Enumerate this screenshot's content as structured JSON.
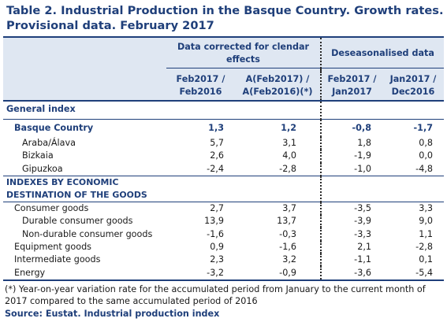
{
  "title": "Table 2. Industrial Production in the Basque Country. Growth rates. Provisional data. February 2017",
  "header": {
    "group1": "Data corrected for clendar effects",
    "group2": "Deseasonalised data",
    "col1": "Feb2017 / Feb2016",
    "col2": "A(Feb2017) / A(Feb2016)(*)",
    "col3": "Feb2017 / Jan2017",
    "col4": "Jan2017 / Dec2016"
  },
  "sections": {
    "general": "General index",
    "destination": "INDEXES BY ECONOMIC DESTINATION OF THE GOODS"
  },
  "rows": {
    "basque": {
      "label": "Basque Country",
      "v1": "1,3",
      "v2": "1,2",
      "v3": "-0,8",
      "v4": "-1,7"
    },
    "araba": {
      "label": "Araba/Álava",
      "v1": "5,7",
      "v2": "3,1",
      "v3": "1,8",
      "v4": "0,8"
    },
    "bizkaia": {
      "label": "Bizkaia",
      "v1": "2,6",
      "v2": "4,0",
      "v3": "-1,9",
      "v4": "0,0"
    },
    "gipuzkoa": {
      "label": "Gipuzkoa",
      "v1": "-2,4",
      "v2": "-2,8",
      "v3": "-1,0",
      "v4": "-4,8"
    },
    "consumer": {
      "label": "Consumer goods",
      "v1": "2,7",
      "v2": "3,7",
      "v3": "-3,5",
      "v4": "3,3"
    },
    "durable": {
      "label": "Durable consumer goods",
      "v1": "13,9",
      "v2": "13,7",
      "v3": "-3,9",
      "v4": "9,0"
    },
    "nondurable": {
      "label": "Non-durable consumer goods",
      "v1": "-1,6",
      "v2": "-0,3",
      "v3": "-3,3",
      "v4": "1,1"
    },
    "equipment": {
      "label": "Equipment goods",
      "v1": "0,9",
      "v2": "-1,6",
      "v3": "2,1",
      "v4": "-2,8"
    },
    "intermediate": {
      "label": "Intermediate goods",
      "v1": "2,3",
      "v2": "3,2",
      "v3": "-1,1",
      "v4": "0,1"
    },
    "energy": {
      "label": "Energy",
      "v1": "-3,2",
      "v2": "-0,9",
      "v3": "-3,6",
      "v4": "-5,4"
    }
  },
  "footnote": "(*) Year-on-year variation rate for the accumulated period from January to the current month of 2017 compared to the same accumulated period of 2016",
  "source": "Source: Eustat. Industrial production index",
  "colors": {
    "header_band": "#dfe7f2",
    "title": "#1f3f7a"
  }
}
